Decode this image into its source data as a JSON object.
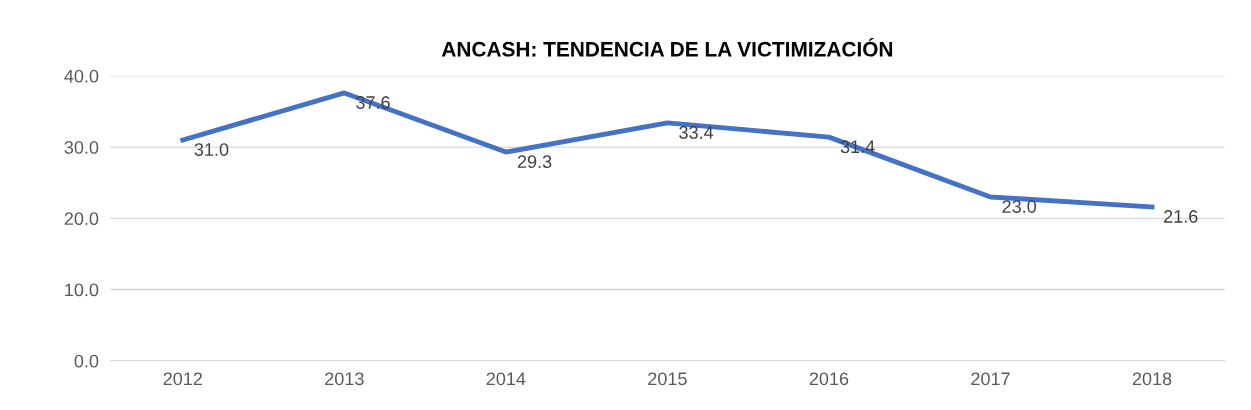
{
  "chart_data": {
    "type": "line",
    "title": "ANCASH: TENDENCIA DE LA VICTIMIZACIÓN",
    "categories": [
      "2012",
      "2013",
      "2014",
      "2015",
      "2016",
      "2017",
      "2018"
    ],
    "series": [
      {
        "color": "#4472c4",
        "values": [
          31.0,
          37.6,
          29.3,
          33.4,
          31.4,
          23.0,
          21.6
        ],
        "value_labels": [
          "31.0",
          "37.6",
          "29.3",
          "33.4",
          "31.4",
          "23.0",
          "21.6"
        ]
      }
    ],
    "ylim": [
      0,
      40
    ],
    "yticks": [
      {
        "value": 0,
        "label": "0.0"
      },
      {
        "value": 10,
        "label": "10.0"
      },
      {
        "value": 20,
        "label": "20.0"
      },
      {
        "value": 30,
        "label": "30.0"
      },
      {
        "value": 40,
        "label": "40.0"
      }
    ],
    "grid": "y",
    "marker": "none",
    "line_style": "solid"
  }
}
